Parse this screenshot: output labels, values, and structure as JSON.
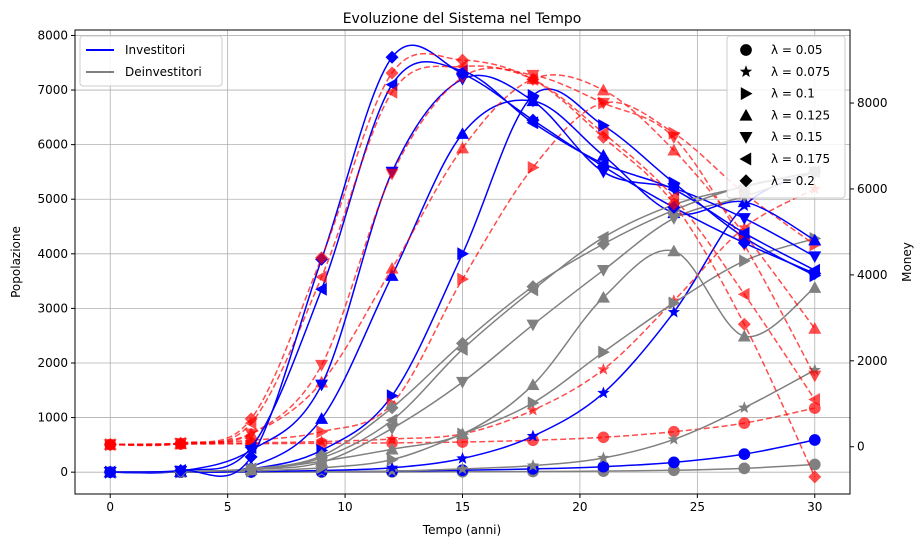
{
  "chart_data": {
    "type": "line",
    "title": "Evoluzione del Sistema nel Tempo",
    "xlabel": "Tempo (anni)",
    "ylabel": "Popolazione",
    "y2label": "Money",
    "xlim": [
      -1.5,
      31.5
    ],
    "ylim": [
      -400,
      8100
    ],
    "y2lim": [
      -1100,
      9700
    ],
    "xticks": [
      0,
      5,
      10,
      15,
      20,
      25,
      30
    ],
    "yticks": [
      0,
      1000,
      2000,
      3000,
      4000,
      5000,
      6000,
      7000,
      8000
    ],
    "y2ticks": [
      0,
      2000,
      4000,
      6000,
      8000
    ],
    "grid": true,
    "marker_x": [
      0,
      3,
      6,
      9,
      12,
      15,
      18,
      21,
      24,
      27,
      30
    ],
    "colors": {
      "investitori": "#0000ff",
      "deinvestitori": "#808080",
      "money": "#ff0000"
    },
    "legend_lines": {
      "placement": "top-left",
      "entries": [
        {
          "label": "Investitori",
          "color": "#0000ff"
        },
        {
          "label": "Deinvestitori",
          "color": "#808080"
        }
      ]
    },
    "legend_markers": {
      "placement": "top-right",
      "entries": [
        {
          "marker": "circle",
          "label": "λ = 0.05"
        },
        {
          "marker": "star",
          "label": "λ = 0.075"
        },
        {
          "marker": "triangle-right",
          "label": "λ = 0.1"
        },
        {
          "marker": "triangle-up",
          "label": "λ = 0.125"
        },
        {
          "marker": "triangle-down",
          "label": "λ = 0.15"
        },
        {
          "marker": "triangle-left",
          "label": "λ = 0.175"
        },
        {
          "marker": "diamond",
          "label": "λ = 0.2"
        }
      ]
    },
    "series": [
      {
        "lambda": 0.05,
        "marker": "circle",
        "investitori": [
          0,
          2,
          5,
          10,
          18,
          35,
          60,
          100,
          180,
          330,
          590
        ],
        "deinvestitori": [
          0,
          0,
          1,
          2,
          4,
          7,
          12,
          20,
          35,
          70,
          140
        ],
        "money": [
          50,
          60,
          70,
          80,
          90,
          110,
          150,
          220,
          350,
          550,
          900
        ]
      },
      {
        "lambda": 0.075,
        "marker": "star",
        "investitori": [
          0,
          3,
          10,
          30,
          80,
          250,
          660,
          1450,
          2930,
          4880,
          5500
        ],
        "deinvestitori": [
          0,
          1,
          3,
          8,
          20,
          60,
          120,
          260,
          600,
          1180,
          1870
        ],
        "money": [
          50,
          70,
          90,
          120,
          180,
          300,
          850,
          1800,
          3400,
          5100,
          6000
        ]
      },
      {
        "lambda": 0.1,
        "marker": "triangle-right",
        "investitori": [
          0,
          10,
          60,
          400,
          1400,
          4000,
          6900,
          6350,
          5300,
          4300,
          3600
        ],
        "deinvestitori": [
          0,
          3,
          20,
          80,
          230,
          700,
          1270,
          2200,
          3100,
          3870,
          4280
        ],
        "money": [
          50,
          70,
          150,
          350,
          1000,
          3900,
          6500,
          8000,
          7300,
          5900,
          4700
        ]
      },
      {
        "lambda": 0.125,
        "marker": "triangle-up",
        "investitori": [
          0,
          10,
          100,
          980,
          3600,
          6200,
          6800,
          5800,
          4750,
          4950,
          4250
        ],
        "deinvestitori": [
          0,
          5,
          40,
          200,
          420,
          700,
          1600,
          3200,
          4050,
          2490,
          3380
        ],
        "money": [
          50,
          70,
          300,
          1500,
          4150,
          6950,
          8560,
          8300,
          6900,
          4950,
          2750
        ]
      },
      {
        "lambda": 0.15,
        "marker": "triangle-down",
        "investitori": [
          0,
          20,
          400,
          1600,
          5500,
          7200,
          6800,
          5500,
          5200,
          4650,
          3950
        ],
        "deinvestitori": [
          0,
          10,
          50,
          180,
          800,
          1650,
          2700,
          3700,
          4650,
          5050,
          5500
        ],
        "money": [
          50,
          80,
          300,
          1900,
          6350,
          8600,
          8650,
          8000,
          7200,
          4700,
          1650
        ]
      },
      {
        "lambda": 0.175,
        "marker": "triangle-left",
        "investitori": [
          0,
          30,
          450,
          3350,
          7100,
          7350,
          6400,
          5650,
          5180,
          4380,
          3700
        ],
        "deinvestitori": [
          0,
          10,
          60,
          260,
          950,
          2250,
          3340,
          4300,
          4900,
          5230,
          5500
        ],
        "money": [
          50,
          80,
          550,
          3950,
          8250,
          8850,
          8550,
          7300,
          5800,
          3550,
          1100
        ]
      },
      {
        "lambda": 0.2,
        "marker": "diamond",
        "investitori": [
          0,
          30,
          280,
          3900,
          7600,
          7300,
          6450,
          5600,
          4850,
          4200,
          3640
        ],
        "deinvestitori": [
          0,
          10,
          60,
          300,
          1180,
          2360,
          3400,
          4180,
          4800,
          5240,
          5500
        ],
        "money": [
          50,
          80,
          650,
          4400,
          8700,
          9000,
          8550,
          7200,
          5650,
          2850,
          -700
        ]
      }
    ]
  }
}
